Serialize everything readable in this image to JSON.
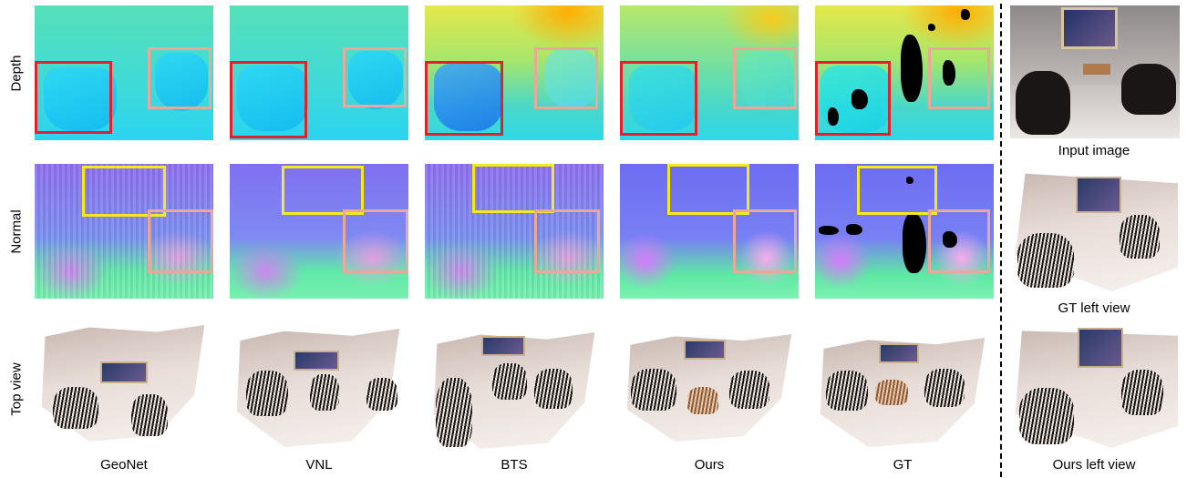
{
  "row_labels": {
    "depth": "Depth",
    "normal": "Normal",
    "top_view": "Top view"
  },
  "method_labels": [
    "GeoNet",
    "VNL",
    "BTS",
    "Ours",
    "GT"
  ],
  "side_labels": {
    "input": "Input image",
    "gt_left": "GT left view",
    "ours_left": "Ours left view"
  },
  "colors": {
    "red_box": "#e0222a",
    "pink_box": "#eaa898",
    "yellow_box": "#f4ea1a"
  }
}
